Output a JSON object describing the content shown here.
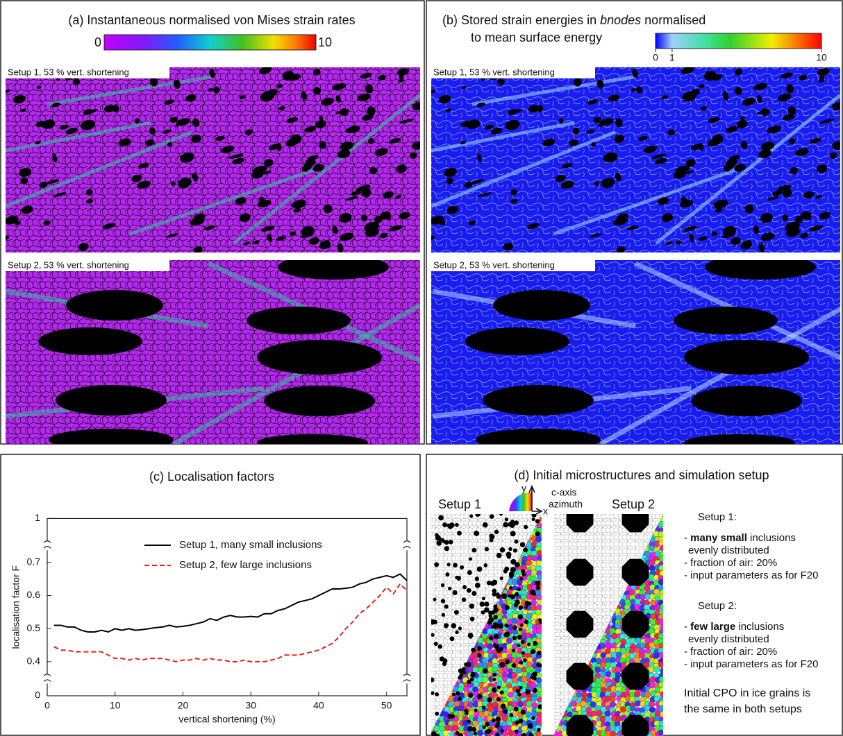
{
  "panel_a": {
    "title": "(a) Instantaneous normalised von Mises strain rates",
    "colorbar": {
      "lim": [
        0,
        10
      ],
      "ticks": [
        0,
        10
      ]
    },
    "images": [
      "Setup 1, 53 % vert. shortening",
      "Setup 2, 53 % vert. shortening"
    ]
  },
  "panel_b": {
    "title": [
      "(b) Stored strain energies in ",
      "bnodes",
      " normalised"
    ],
    "title_line2": "to mean surface energy",
    "colorbar": {
      "lim": [
        0,
        10
      ],
      "ticks": [
        0,
        1,
        10
      ]
    },
    "images": [
      "Setup 1, 53 % vert. shortening",
      "Setup 2, 53 % vert. shortening"
    ]
  },
  "chart_data": {
    "type": "line",
    "title": "(c) Localisation factors",
    "x_label": "vertical shortening (%)",
    "y_label": "localisation factor F",
    "xlim": [
      0,
      53
    ],
    "xticks": [
      0,
      10,
      20,
      30,
      40,
      50
    ],
    "ylim": [
      0,
      1
    ],
    "yticks": [
      0,
      0.4,
      0.5,
      0.6,
      0.7,
      1
    ],
    "axis_breaks": [
      [
        0.02,
        0.38
      ],
      [
        0.72,
        0.95
      ]
    ],
    "x": [
      1,
      2,
      3,
      4,
      5,
      6,
      7,
      8,
      9,
      10,
      11,
      12,
      13,
      14,
      15,
      16,
      17,
      18,
      19,
      20,
      21,
      22,
      23,
      24,
      25,
      26,
      27,
      28,
      29,
      30,
      31,
      32,
      33,
      34,
      35,
      36,
      37,
      38,
      39,
      40,
      41,
      42,
      43,
      44,
      45,
      46,
      47,
      48,
      49,
      50,
      51,
      52,
      53
    ],
    "series": [
      {
        "name": "Setup 1, many small inclusions",
        "color": "#000000",
        "dash": "none",
        "values": [
          0.51,
          0.51,
          0.505,
          0.505,
          0.495,
          0.49,
          0.49,
          0.495,
          0.49,
          0.5,
          0.495,
          0.5,
          0.495,
          0.497,
          0.5,
          0.503,
          0.505,
          0.51,
          0.505,
          0.507,
          0.51,
          0.515,
          0.52,
          0.53,
          0.525,
          0.535,
          0.54,
          0.535,
          0.535,
          0.537,
          0.535,
          0.545,
          0.545,
          0.555,
          0.56,
          0.57,
          0.58,
          0.585,
          0.59,
          0.6,
          0.61,
          0.62,
          0.62,
          0.622,
          0.625,
          0.635,
          0.64,
          0.65,
          0.655,
          0.66,
          0.655,
          0.665,
          0.645
        ]
      },
      {
        "name": "Setup 2, few large inclusions",
        "color": "#e8201c",
        "dash": "7 4",
        "values": [
          0.445,
          0.435,
          0.435,
          0.43,
          0.43,
          0.43,
          0.43,
          0.43,
          0.42,
          0.41,
          0.41,
          0.405,
          0.41,
          0.405,
          0.41,
          0.41,
          0.41,
          0.405,
          0.4,
          0.405,
          0.405,
          0.41,
          0.405,
          0.41,
          0.405,
          0.405,
          0.4,
          0.4,
          0.405,
          0.4,
          0.4,
          0.4,
          0.405,
          0.41,
          0.42,
          0.42,
          0.42,
          0.425,
          0.43,
          0.435,
          0.445,
          0.455,
          0.475,
          0.5,
          0.52,
          0.545,
          0.56,
          0.58,
          0.6,
          0.625,
          0.605,
          0.635,
          0.615
        ]
      }
    ]
  },
  "panel_d": {
    "title": "(d) Initial microstructures and simulation setup",
    "setup1_label": "Setup 1",
    "setup2_label": "Setup 2",
    "axis_y": "y",
    "axis_x": "x",
    "c_axis": "c-axis",
    "azimuth": "azimuth",
    "setups": [
      {
        "heading": "Setup 1:",
        "first_line": [
          "- ",
          "many small",
          " inclusions"
        ],
        "lines": [
          "evenly distributed",
          "- fraction of air: 20%",
          "- input parameters as for F20"
        ]
      },
      {
        "heading": "Setup 2:",
        "first_line": [
          "- ",
          "few large",
          " inclusions"
        ],
        "lines": [
          "evenly distributed",
          "- fraction of air: 20%",
          "- input parameters as for F20"
        ]
      }
    ],
    "note": [
      "Initial CPO in ice grains is",
      "the same in both setups"
    ]
  }
}
